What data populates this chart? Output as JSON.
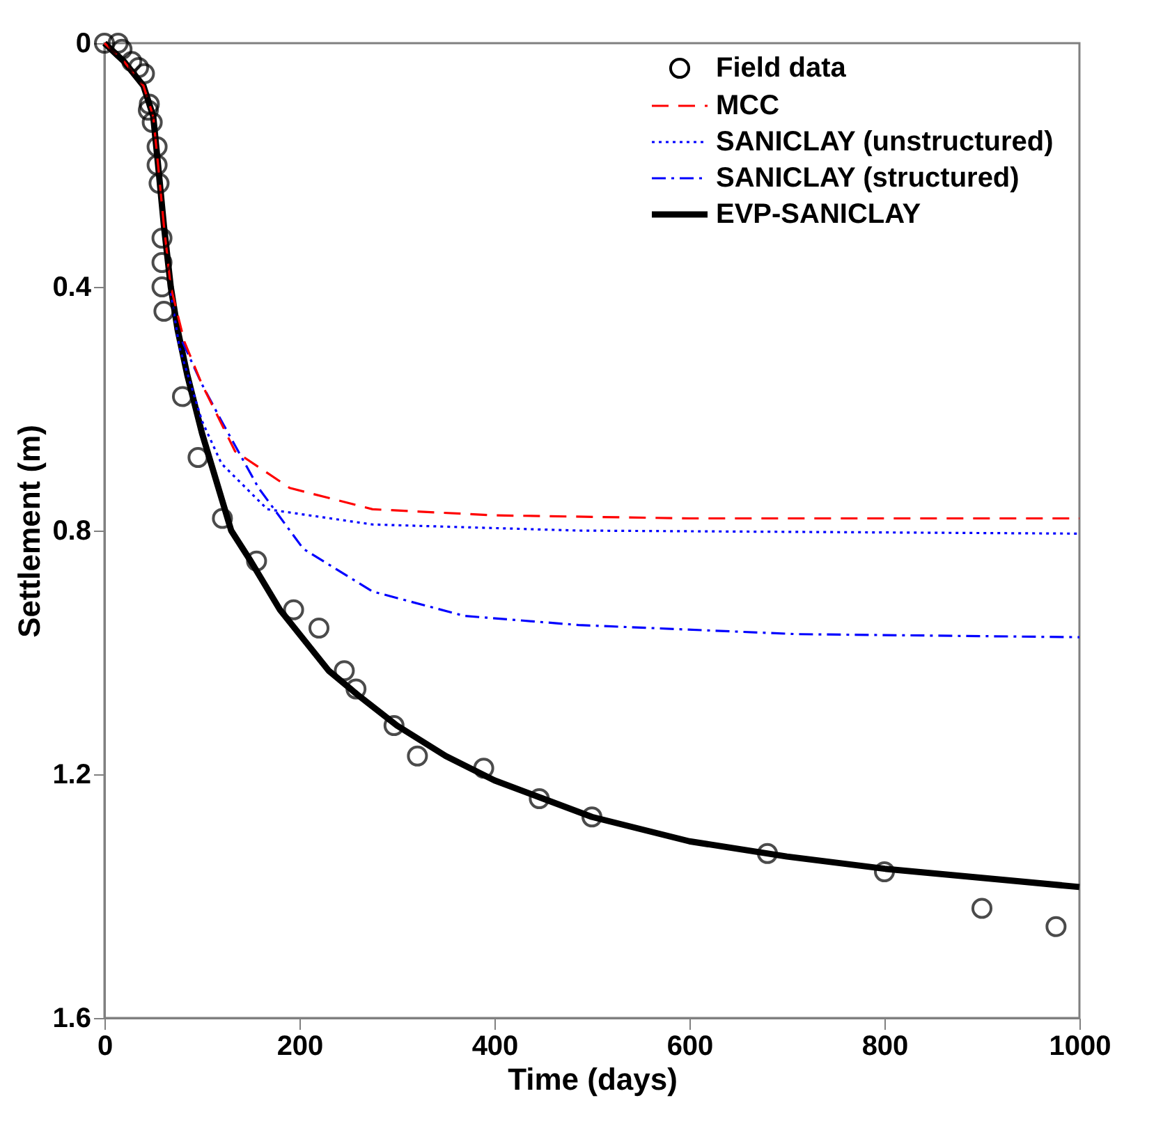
{
  "chart_data": {
    "type": "line",
    "xlabel": "Time (days)",
    "ylabel": "Settlement (m)",
    "xlim": [
      0,
      1000
    ],
    "xticks": [
      0,
      200,
      400,
      600,
      800,
      1000
    ],
    "ylim": [
      1.6,
      0
    ],
    "yticks": [
      0,
      0.4,
      0.8,
      1.2,
      1.6
    ],
    "grid": false,
    "legend": "top right",
    "series": [
      {
        "name": "Field data",
        "type": "scatter",
        "marker": "circle",
        "color": "#000000",
        "x": [
          0,
          14,
          18,
          28,
          35,
          41,
          46,
          45,
          49,
          54,
          54,
          56,
          59,
          59,
          59,
          61,
          80,
          96,
          121,
          156,
          194,
          220,
          246,
          258,
          297,
          321,
          389,
          446,
          500,
          680,
          800,
          900,
          976
        ],
        "values": [
          0,
          0,
          0.01,
          0.03,
          0.04,
          0.05,
          0.1,
          0.11,
          0.13,
          0.17,
          0.2,
          0.23,
          0.32,
          0.36,
          0.4,
          0.44,
          0.58,
          0.68,
          0.78,
          0.85,
          0.93,
          0.96,
          1.03,
          1.06,
          1.12,
          1.17,
          1.19,
          1.24,
          1.27,
          1.33,
          1.36,
          1.42,
          1.45
        ]
      },
      {
        "name": "MCC",
        "line_style": "dashed",
        "color": "#ff0000",
        "x": [
          0,
          20,
          40,
          50,
          55,
          61,
          68,
          82,
          100,
          134,
          190,
          275,
          400,
          600,
          1000
        ],
        "values": [
          0,
          0.03,
          0.07,
          0.12,
          0.2,
          0.3,
          0.4,
          0.49,
          0.56,
          0.67,
          0.73,
          0.765,
          0.775,
          0.78,
          0.78
        ]
      },
      {
        "name": "SANICLAY (unstructured)",
        "line_style": "dotted",
        "color": "#0000ff",
        "x": [
          68,
          77,
          100,
          120,
          167,
          275,
          486,
          1000
        ],
        "values": [
          0.41,
          0.5,
          0.62,
          0.69,
          0.765,
          0.79,
          0.8,
          0.805
        ]
      },
      {
        "name": "SANICLAY (structured)",
        "line_style": "dashdot",
        "color": "#0000ff",
        "x": [
          80,
          100,
          120,
          158,
          204,
          275,
          369,
          486,
          711,
          1000
        ],
        "values": [
          0.49,
          0.56,
          0.62,
          0.73,
          0.83,
          0.9,
          0.94,
          0.955,
          0.97,
          0.975
        ]
      },
      {
        "name": "EVP-SANICLAY",
        "line_style": "solid",
        "color": "#000000",
        "x": [
          0,
          20,
          40,
          50,
          55,
          61,
          68,
          75,
          85,
          100,
          130,
          150,
          180,
          200,
          230,
          260,
          300,
          350,
          400,
          450,
          500,
          600,
          700,
          800,
          900,
          1000
        ],
        "values": [
          0,
          0.03,
          0.07,
          0.12,
          0.2,
          0.3,
          0.4,
          0.47,
          0.545,
          0.64,
          0.8,
          0.85,
          0.93,
          0.97,
          1.03,
          1.07,
          1.12,
          1.17,
          1.21,
          1.24,
          1.27,
          1.31,
          1.335,
          1.355,
          1.37,
          1.385
        ]
      }
    ]
  }
}
